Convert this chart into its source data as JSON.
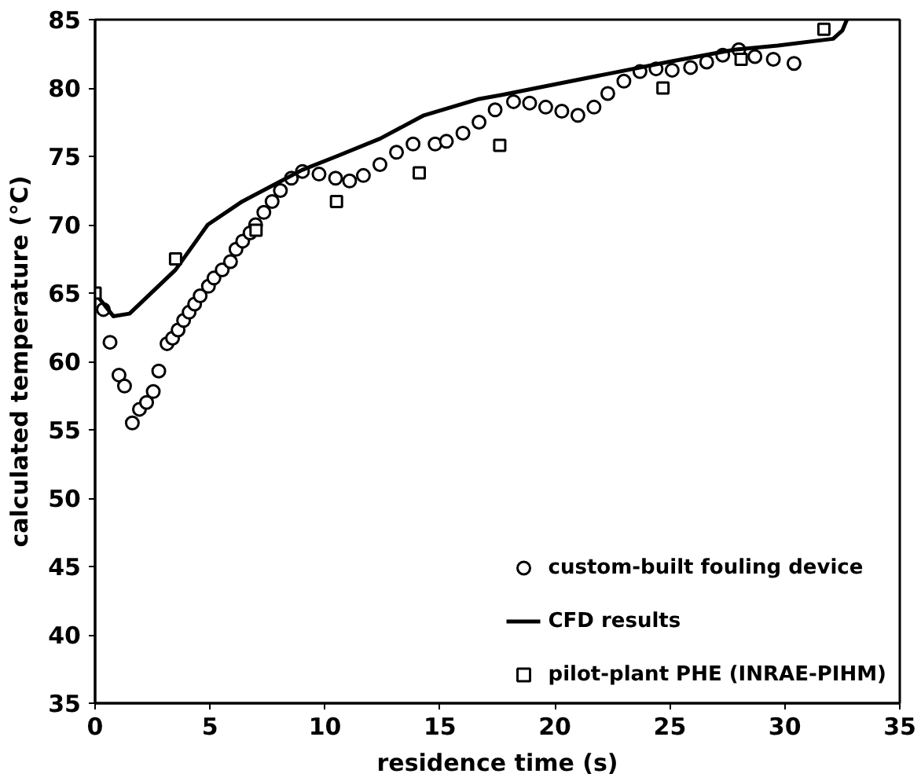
{
  "chart_data": {
    "type": "scatter",
    "xlabel": "residence time (s)",
    "ylabel": "calculated temperature (°C)",
    "xlim": [
      0,
      35
    ],
    "xticks": [
      0,
      5,
      10,
      15,
      20,
      25,
      30,
      35
    ],
    "ylim": [
      35,
      85
    ],
    "yticks": [
      35,
      40,
      45,
      50,
      55,
      60,
      65,
      70,
      75,
      80,
      85
    ],
    "grid": false,
    "legend": "bottom right",
    "series": [
      {
        "name": "custom-built fouling device",
        "marker": "circle",
        "color": "#000000",
        "x": [
          0.36,
          0.65,
          1.04,
          1.28,
          1.62,
          1.93,
          2.24,
          2.53,
          2.77,
          3.13,
          3.37,
          3.61,
          3.85,
          4.09,
          4.33,
          4.57,
          4.93,
          5.17,
          5.53,
          5.89,
          6.13,
          6.42,
          6.74,
          6.98,
          7.34,
          7.7,
          8.06,
          8.54,
          9.02,
          9.74,
          10.46,
          11.07,
          11.67,
          12.39,
          13.11,
          13.83,
          14.79,
          15.28,
          16.0,
          16.7,
          17.4,
          18.2,
          18.9,
          19.6,
          20.3,
          21.0,
          21.7,
          22.3,
          23.0,
          23.7,
          24.4,
          25.1,
          25.9,
          26.6,
          27.3,
          28.0,
          28.7,
          29.5,
          30.4
        ],
        "values": [
          63.8,
          61.4,
          59.0,
          58.2,
          55.5,
          56.5,
          57.0,
          57.8,
          59.3,
          61.3,
          61.7,
          62.3,
          63.0,
          63.6,
          64.2,
          64.8,
          65.5,
          66.1,
          66.7,
          67.3,
          68.2,
          68.8,
          69.4,
          70.0,
          70.9,
          71.7,
          72.5,
          73.4,
          73.9,
          73.7,
          73.4,
          73.2,
          73.6,
          74.4,
          75.3,
          75.9,
          75.9,
          76.1,
          76.7,
          77.5,
          78.4,
          79.0,
          78.9,
          78.6,
          78.3,
          78.0,
          78.6,
          79.6,
          80.5,
          81.2,
          81.4,
          81.3,
          81.5,
          81.9,
          82.4,
          82.8,
          82.3,
          82.1,
          81.8
        ]
      },
      {
        "name": "CFD results",
        "type": "line",
        "marker": "none",
        "color": "#000000",
        "x": [
          0,
          0.8,
          1.5,
          3.5,
          4.9,
          6.4,
          8.1,
          9.0,
          10.5,
          12.4,
          14.3,
          15.5,
          16.7,
          17.7,
          20.1,
          22.5,
          24.9,
          27.8,
          29.7,
          32.1,
          32.5,
          32.7
        ],
        "values": [
          65.0,
          63.3,
          63.5,
          66.7,
          70.0,
          71.7,
          73.2,
          74.0,
          75.0,
          76.3,
          78.0,
          78.6,
          79.2,
          79.5,
          80.3,
          81.1,
          81.9,
          82.8,
          83.1,
          83.6,
          84.2,
          85.0
        ]
      },
      {
        "name": "pilot-plant PHE (INRAE-PIHM)",
        "marker": "square",
        "color": "#000000",
        "x": [
          0,
          3.5,
          7.0,
          10.5,
          14.1,
          17.6,
          24.7,
          28.1,
          31.7
        ],
        "values": [
          65.0,
          67.5,
          69.6,
          71.7,
          73.8,
          75.8,
          80.0,
          82.1,
          84.3
        ]
      }
    ]
  }
}
